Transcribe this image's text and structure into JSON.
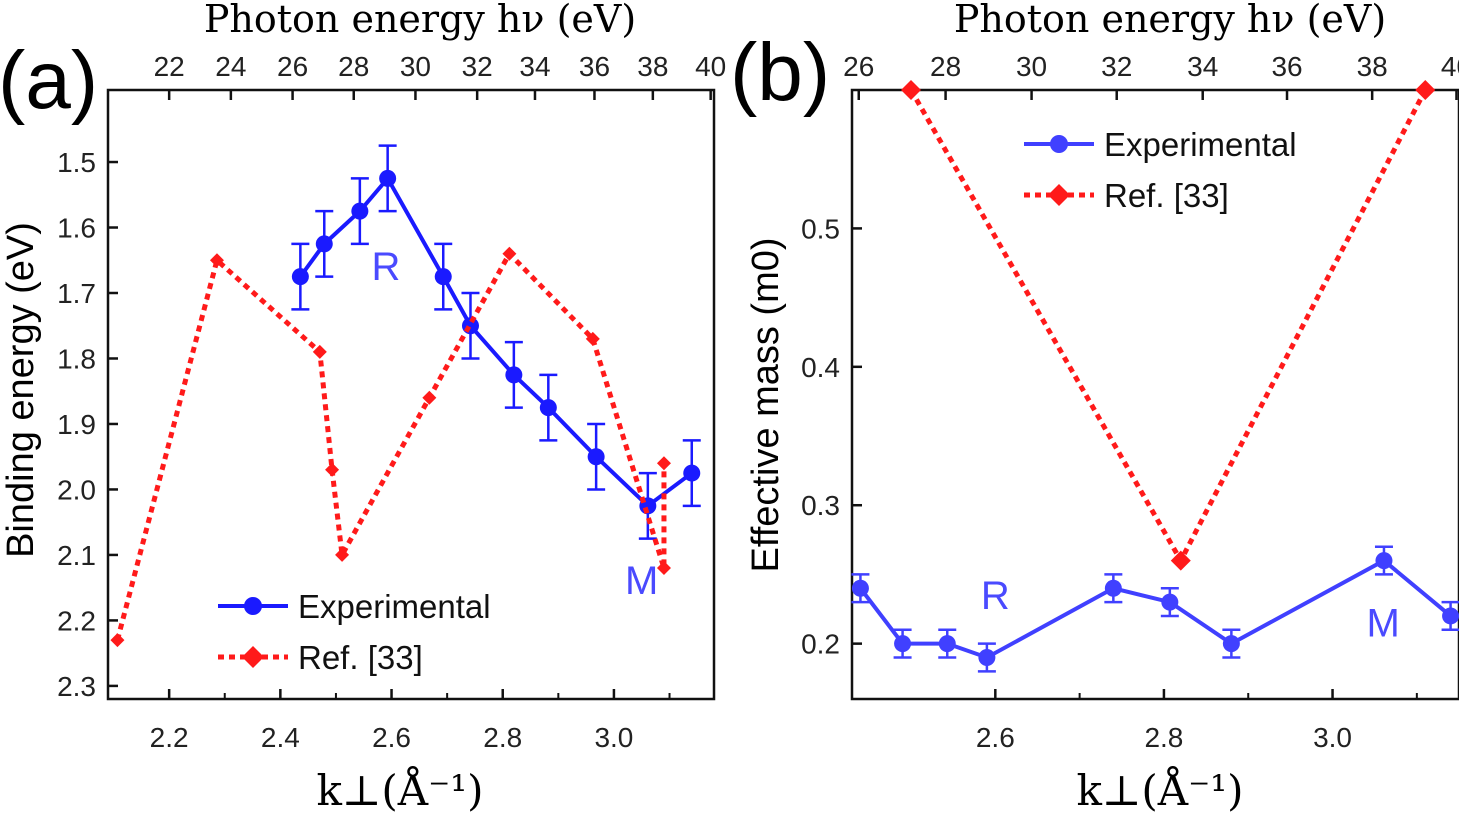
{
  "chart_data": [
    {
      "type": "line",
      "panel_label": "(a)",
      "xlabel": "k⊥(Å⁻¹)",
      "ylabel": "Binding energy (eV)",
      "top_xlabel": "Photon energy hν (eV)",
      "xlim": [
        2.09,
        3.18
      ],
      "ylim": [
        2.32,
        1.39
      ],
      "y_inverted": true,
      "x_ticks": [
        "2.2",
        "2.4",
        "2.6",
        "2.8",
        "3.0"
      ],
      "x_tick_values": [
        2.2,
        2.4,
        2.6,
        2.8,
        3.0
      ],
      "y_ticks": [
        "1.5",
        "1.6",
        "1.7",
        "1.8",
        "1.9",
        "2.0",
        "2.1",
        "2.2",
        "2.3"
      ],
      "y_tick_values": [
        1.5,
        1.6,
        1.7,
        1.8,
        1.9,
        2.0,
        2.1,
        2.2,
        2.3
      ],
      "top_ticks": [
        "22",
        "24",
        "26",
        "28",
        "30",
        "32",
        "34",
        "36",
        "38",
        "40"
      ],
      "top_tick_positions_k": [
        2.2,
        2.311,
        2.422,
        2.532,
        2.643,
        2.754,
        2.858,
        2.965,
        3.07,
        3.174
      ],
      "grid": false,
      "legend_position": "bottom-center",
      "annotations": [
        {
          "text": "R",
          "x": 2.59,
          "y": 1.68
        },
        {
          "text": "M",
          "x": 3.05,
          "y": 2.16
        }
      ],
      "series": [
        {
          "name": "Experimental",
          "color": "#1a1aff",
          "marker": "circle",
          "line": "solid",
          "x": [
            2.436,
            2.479,
            2.543,
            2.593,
            2.693,
            2.742,
            2.82,
            2.882,
            2.968,
            3.061,
            3.14
          ],
          "y": [
            1.675,
            1.625,
            1.575,
            1.525,
            1.675,
            1.75,
            1.825,
            1.875,
            1.95,
            2.025,
            1.975
          ],
          "error": [
            0.05,
            0.05,
            0.05,
            0.05,
            0.05,
            0.05,
            0.05,
            0.05,
            0.05,
            0.05,
            0.05
          ]
        },
        {
          "name": "Ref. [33]",
          "color": "#ff1a1a",
          "marker": "diamond",
          "line": "dotted",
          "x": [
            2.107,
            2.286,
            2.471,
            2.493,
            2.511,
            2.668,
            2.812,
            2.962,
            3.09,
            3.09
          ],
          "y": [
            2.23,
            1.65,
            1.79,
            1.97,
            2.1,
            1.86,
            1.64,
            1.77,
            2.12,
            1.96
          ]
        }
      ]
    },
    {
      "type": "line",
      "panel_label": "(b)",
      "xlabel": "k⊥(Å⁻¹)",
      "ylabel": "Effective mass (m0)",
      "top_xlabel": "Photon energy hν (eV)",
      "xlim": [
        2.43,
        3.15
      ],
      "ylim": [
        0.16,
        0.6
      ],
      "x_ticks": [
        "2.6",
        "2.8",
        "3.0"
      ],
      "x_tick_values": [
        2.6,
        2.8,
        3.0
      ],
      "y_ticks": [
        "0.2",
        "0.3",
        "0.4",
        "0.5"
      ],
      "y_tick_values": [
        0.2,
        0.3,
        0.4,
        0.5
      ],
      "top_ticks": [
        "26",
        "28",
        "30",
        "32",
        "34",
        "36",
        "38",
        "40"
      ],
      "top_tick_positions_k": [
        2.438,
        2.541,
        2.643,
        2.744,
        2.846,
        2.946,
        3.047,
        3.147
      ],
      "grid": false,
      "legend_position": "top-center",
      "annotations": [
        {
          "text": "R",
          "x": 2.6,
          "y": 0.225
        },
        {
          "text": "M",
          "x": 3.06,
          "y": 0.205
        }
      ],
      "series": [
        {
          "name": "Experimental",
          "color": "#4040ff",
          "marker": "circle",
          "line": "solid",
          "x": [
            2.44,
            2.49,
            2.543,
            2.59,
            2.74,
            2.807,
            2.88,
            3.061,
            3.14
          ],
          "y": [
            0.24,
            0.2,
            0.2,
            0.19,
            0.24,
            0.23,
            0.2,
            0.26,
            0.22
          ],
          "error": [
            0.01,
            0.01,
            0.01,
            0.01,
            0.01,
            0.01,
            0.01,
            0.01,
            0.01
          ]
        },
        {
          "name": "Ref. [33]",
          "color": "#ff1a1a",
          "marker": "diamond",
          "line": "dotted",
          "x": [
            2.5,
            2.82,
            3.11
          ],
          "y": [
            0.6,
            0.26,
            0.6
          ]
        }
      ]
    }
  ]
}
